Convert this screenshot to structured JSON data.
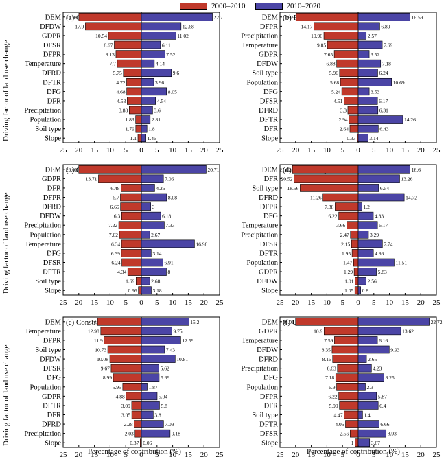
{
  "legend": {
    "series_a": "2000–2010",
    "series_b": "2010–2020",
    "color_a": "#c0392b",
    "color_b": "#4b45a6"
  },
  "ylabel": "Driving factor of land use change",
  "xlabel": "Percentage of contribution (%)",
  "chart_data": [
    {
      "type": "bar",
      "title": "(a) Cultivated land",
      "categories": [
        "DEM",
        "DFDW",
        "GDPR",
        "DFSR",
        "DFPR",
        "Temperature",
        "DFRD",
        "DFTR",
        "DFG",
        "DFR",
        "Precipitation",
        "Population",
        "Soil type",
        "Slope"
      ],
      "series": [
        {
          "name": "2000–2010",
          "values": [
            19.98,
            17.9,
            10.54,
            8.67,
            8.13,
            7.7,
            5.75,
            4.72,
            4.68,
            4.53,
            3.88,
            1.83,
            1.79,
            1.1
          ]
        },
        {
          "name": "2010–2020",
          "values": [
            22.71,
            12.68,
            11.02,
            6.11,
            7.52,
            4.14,
            9.6,
            3.96,
            8.05,
            4.54,
            3.6,
            2.81,
            1.8,
            1.46
          ]
        }
      ],
      "xticks": [
        "25",
        "20",
        "15",
        "10",
        "5",
        "0",
        "5",
        "10",
        "15",
        "20",
        "25"
      ],
      "xlim": [
        -25,
        25
      ]
    },
    {
      "type": "bar",
      "title": "(b) Forestland",
      "categories": [
        "DEM",
        "DFPR",
        "Precipitation",
        "Temperature",
        "GDPR",
        "DFDW",
        "Soil type",
        "Population",
        "DFG",
        "DFSR",
        "DFRD",
        "DFTR",
        "DFR",
        "Slope"
      ],
      "series": [
        {
          "name": "2000–2010",
          "values": [
            19.9,
            14.17,
            10.96,
            9.85,
            7.65,
            6.88,
            5.96,
            5.68,
            5.24,
            4.51,
            3.3,
            2.94,
            2.64,
            0.33
          ]
        },
        {
          "name": "2010–2020",
          "values": [
            16.59,
            6.89,
            2.57,
            7.69,
            3.52,
            7.18,
            6.24,
            10.69,
            3.53,
            6.17,
            6.31,
            14.26,
            6.43,
            3.14
          ]
        }
      ],
      "xticks": [
        "25",
        "20",
        "15",
        "10",
        "5",
        "0",
        "5",
        "10",
        "15",
        "20",
        "25"
      ],
      "xlim": [
        -25,
        25
      ]
    },
    {
      "type": "bar",
      "title": "(c) Grassland",
      "categories": [
        "DEM",
        "GDPR",
        "DFR",
        "DFPR",
        "DFRD",
        "DFDW",
        "Precipitation",
        "Population",
        "Temperature",
        "DFG",
        "DFSR",
        "DFTR",
        "Soil type",
        "Slope"
      ],
      "series": [
        {
          "name": "2000–2010",
          "values": [
            20.01,
            13.71,
            6.48,
            6.7,
            6.66,
            6.3,
            7.22,
            7.02,
            6.34,
            6.39,
            6.24,
            4.34,
            1.69,
            0.96
          ]
        },
        {
          "name": "2010–2020",
          "values": [
            20.71,
            7.06,
            4.26,
            8.08,
            3.0,
            6.18,
            7.33,
            2.67,
            16.98,
            3.14,
            6.91,
            8.0,
            2.68,
            3.18
          ]
        }
      ],
      "xticks": [
        "25",
        "20",
        "15",
        "10",
        "5",
        "0",
        "5",
        "10",
        "15",
        "20",
        "25"
      ],
      "xlim": [
        -25,
        25
      ]
    },
    {
      "type": "bar",
      "title": "(d) Water body",
      "categories": [
        "DEM",
        "DFR",
        "Soil type",
        "DFRD",
        "DFPR",
        "DFG",
        "Temperature",
        "Precipitation",
        "DFSR",
        "DFTR",
        "Population",
        "GDPR",
        "DFDW",
        "Slope"
      ],
      "series": [
        {
          "name": "2000–2010",
          "values": [
            21.02,
            20.52,
            18.56,
            11.26,
            7.38,
            6.22,
            3.66,
            2.47,
            2.15,
            1.95,
            1.47,
            1.29,
            1.01,
            1.05
          ]
        },
        {
          "name": "2010–2020",
          "values": [
            16.6,
            13.26,
            6.54,
            14.72,
            1.2,
            4.83,
            6.17,
            3.29,
            7.74,
            4.86,
            11.51,
            5.83,
            2.56,
            0.8
          ]
        }
      ],
      "xticks": [
        "25",
        "20",
        "15",
        "10",
        "5",
        "0",
        "5",
        "10",
        "15",
        "20",
        "25"
      ],
      "xlim": [
        -25,
        25
      ]
    },
    {
      "type": "bar",
      "title": "(e) Constraction land",
      "categories": [
        "DEM",
        "Temperature",
        "DFPR",
        "Soil type",
        "DFDW",
        "DFSR",
        "DFG",
        "Population",
        "GDPR",
        "DFTR",
        "DFR",
        "DFRD",
        "Precipitation",
        "Slope"
      ],
      "series": [
        {
          "name": "2000–2010",
          "values": [
            14.0,
            12.98,
            11.9,
            10.73,
            10.08,
            9.67,
            8.99,
            5.95,
            4.88,
            3.09,
            3.05,
            2.28,
            2.03,
            0.37
          ]
        },
        {
          "name": "2010–2020",
          "values": [
            15.2,
            9.75,
            12.59,
            7.43,
            10.81,
            5.62,
            5.69,
            1.87,
            5.04,
            5.8,
            3.8,
            7.09,
            9.18,
            0.06
          ]
        }
      ],
      "xticks": [
        "25",
        "20",
        "15",
        "10",
        "5",
        "0",
        "5",
        "10",
        "15",
        "20",
        "25"
      ],
      "xlim": [
        -25,
        25
      ]
    },
    {
      "type": "bar",
      "title": "(f) Unused land",
      "categories": [
        "DEM",
        "GDPR",
        "Temperature",
        "DFDW",
        "DFRD",
        "Precipitation",
        "DFG",
        "Population",
        "DFPR",
        "DFR",
        "Soil type",
        "DFTR",
        "DFSR",
        "Slope"
      ],
      "series": [
        {
          "name": "2000–2010",
          "values": [
            20.01,
            10.9,
            7.59,
            8.35,
            8.16,
            6.63,
            7.18,
            6.9,
            6.22,
            5.99,
            4.47,
            4.06,
            2.56,
            1.0
          ]
        },
        {
          "name": "2010–2020",
          "values": [
            22.72,
            13.62,
            6.16,
            9.93,
            2.65,
            4.23,
            8.25,
            2.3,
            5.87,
            6.4,
            1.4,
            6.66,
            8.93,
            3.67
          ]
        }
      ],
      "xticks": [
        "25",
        "20",
        "15",
        "10",
        "5",
        "0",
        "5",
        "10",
        "15",
        "20",
        "25"
      ],
      "xlim": [
        -25,
        25
      ]
    }
  ]
}
